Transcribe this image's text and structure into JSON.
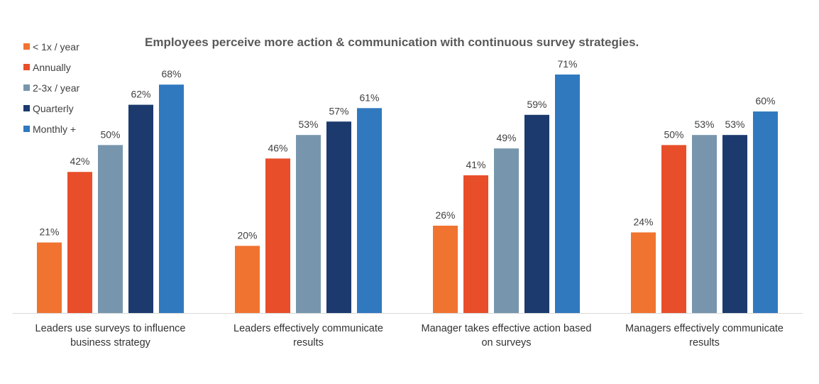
{
  "chart_data": {
    "type": "bar",
    "title": "Employees perceive more action & communication with continuous survey strategies.",
    "xlabel": "",
    "ylabel": "",
    "ylim": [
      0,
      71
    ],
    "grid": false,
    "legend_position": "top-left",
    "categories": [
      "Leaders use surveys to influence business strategy",
      "Leaders effectively communicate results",
      "Manager takes effective action based on surveys",
      "Managers effectively communicate results"
    ],
    "category_lines": [
      [
        "Leaders use surveys to influence",
        "business strategy"
      ],
      [
        "Leaders effectively communicate",
        "results"
      ],
      [
        "Manager takes effective action based",
        "on surveys"
      ],
      [
        "Managers effectively communicate",
        "results"
      ]
    ],
    "series": [
      {
        "name": "< 1x / year",
        "color": "#F07330",
        "values": [
          21,
          20,
          26,
          24
        ],
        "labels": [
          "21%",
          "20%",
          "26%",
          "24%"
        ]
      },
      {
        "name": "Annually",
        "color": "#E84E2A",
        "values": [
          42,
          46,
          41,
          50
        ],
        "labels": [
          "42%",
          "46%",
          "41%",
          "50%"
        ]
      },
      {
        "name": "2-3x / year",
        "color": "#7796AD",
        "values": [
          50,
          53,
          49,
          53
        ],
        "labels": [
          "50%",
          "53%",
          "49%",
          "53%"
        ]
      },
      {
        "name": "Quarterly",
        "color": "#1C3A6E",
        "values": [
          62,
          57,
          59,
          53
        ],
        "labels": [
          "62%",
          "57%",
          "59%",
          "53%"
        ]
      },
      {
        "name": "Monthly +",
        "color": "#3079BF",
        "values": [
          68,
          61,
          71,
          60
        ],
        "labels": [
          "68%",
          "61%",
          "71%",
          "60%"
        ]
      }
    ]
  }
}
